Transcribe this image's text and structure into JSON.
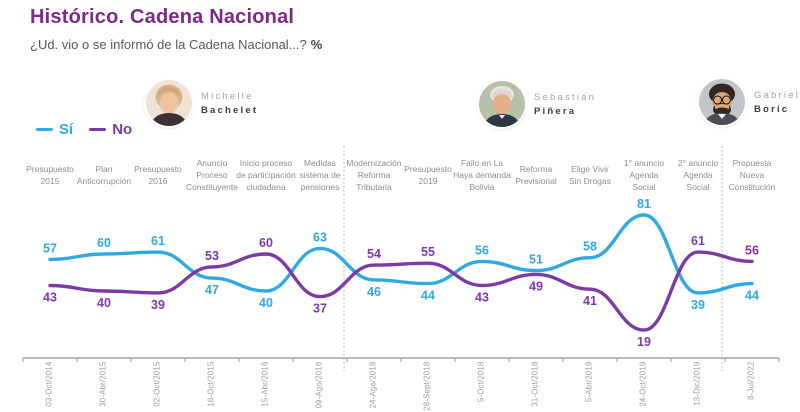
{
  "header": {
    "title": "Histórico. Cadena Nacional",
    "subtitle": "¿Ud. vio o se informó de la Cadena Nacional...?",
    "subtitle_suffix": "%"
  },
  "legend": {
    "si_label": "Sí",
    "no_label": "No"
  },
  "colors": {
    "si_line": "#2fa9e0",
    "no_line": "#7d3aa5",
    "title_purple": "#7b2b87",
    "axis_gray": "#909090",
    "event_label_gray": "#8c8c8c",
    "date_label_gray": "#9a9a9a"
  },
  "presidents": [
    {
      "first": "Michelle",
      "last": "Bachelet",
      "avatar": "bachelet-photo"
    },
    {
      "first": "Sebastián",
      "last": "Piñera",
      "avatar": "pinera-photo"
    },
    {
      "first": "Gabriel",
      "last": "Boric",
      "avatar": "boric-photo"
    }
  ],
  "chart_data": {
    "type": "line",
    "title": "Histórico. Cadena Nacional",
    "subtitle": "¿Ud. vio o se informó de la Cadena Nacional...? %",
    "x": [
      "03-Oct/2014",
      "30-Abr/2015",
      "02-Oct/2015",
      "16-Oct/2015",
      "15-Abr/2016",
      "09-Ago/2016",
      "24-Ago/2018",
      "28-Sept/2018",
      "5-Oct/2018",
      "31-Oct/2018",
      "5-Abr/2019",
      "24-Oct/2019",
      "13-Dic/2019",
      "8-Jul/2022"
    ],
    "events": [
      [
        "Presupuesto",
        "2015"
      ],
      [
        "Plan",
        "Anticorrupción"
      ],
      [
        "Presupuesto",
        "2016"
      ],
      [
        "Anuncio",
        "Proceso",
        "Constituyente"
      ],
      [
        "Inicio proceso",
        "de participación",
        "ciudadana"
      ],
      [
        "Medidas",
        "sistema de",
        "pensiones"
      ],
      [
        "Modernización",
        "Reforma",
        "Tributaria"
      ],
      [
        "Presupuesto",
        "2019"
      ],
      [
        "Fallo en La",
        "Haya demanda",
        "Bolivia"
      ],
      [
        "Reforma",
        "Previsional"
      ],
      [
        "Elige Vivir",
        "Sin Drogas"
      ],
      [
        "1° anuncio",
        "Agenda",
        "Social"
      ],
      [
        "2° anuncio",
        "Agenda",
        "Social"
      ],
      [
        "Propuesta",
        "Nueva",
        "Constitución"
      ]
    ],
    "series": [
      {
        "name": "Sí",
        "color": "#2fa9e0",
        "values": [
          57,
          60,
          61,
          47,
          40,
          63,
          46,
          44,
          56,
          51,
          58,
          81,
          39,
          44
        ]
      },
      {
        "name": "No",
        "color": "#7d3aa5",
        "values": [
          43,
          40,
          39,
          53,
          60,
          37,
          54,
          55,
          43,
          49,
          41,
          19,
          61,
          56
        ]
      }
    ],
    "ylim": [
      0,
      100
    ],
    "grid": false,
    "legend_position": "top-left",
    "separator_after_index": [
      5,
      12
    ],
    "eras": [
      {
        "president": "Michelle Bachelet",
        "from_index": 0,
        "to_index": 5
      },
      {
        "president": "Sebastián Piñera",
        "from_index": 6,
        "to_index": 12
      },
      {
        "president": "Gabriel Boric",
        "from_index": 13,
        "to_index": 13
      }
    ]
  }
}
